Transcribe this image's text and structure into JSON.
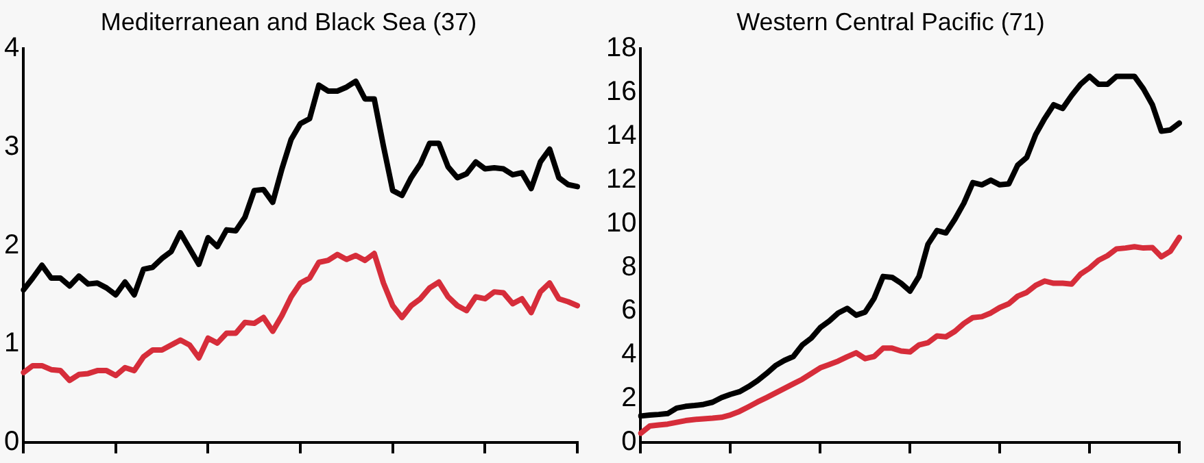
{
  "chart_data": [
    {
      "type": "line",
      "title": "Mediterranean and Black Sea (37)",
      "categories": [
        null,
        null,
        null,
        null,
        null,
        null,
        null,
        null,
        null,
        null,
        null,
        null,
        null,
        null,
        null,
        null,
        null,
        null,
        null,
        null,
        null,
        null,
        null,
        null,
        null,
        null,
        null,
        null,
        null,
        null,
        null,
        null,
        null,
        null,
        null,
        null,
        null,
        null,
        null,
        null,
        null,
        null,
        null,
        null,
        null,
        null,
        null,
        null,
        null,
        null,
        null,
        null,
        null,
        null,
        null,
        null,
        null,
        null,
        null,
        null,
        null
      ],
      "ylim": [
        0,
        4
      ],
      "yticks": [
        0,
        1,
        2,
        3,
        4
      ],
      "tick_labels": "y",
      "line_style": "solid",
      "series": [
        {
          "color": "#000000",
          "values": [
            1.55,
            1.67,
            1.8,
            1.67,
            1.67,
            1.59,
            1.69,
            1.61,
            1.62,
            1.57,
            1.5,
            1.63,
            1.5,
            1.76,
            1.78,
            1.87,
            1.94,
            2.13,
            1.97,
            1.81,
            2.08,
            1.99,
            2.16,
            2.15,
            2.29,
            2.56,
            2.57,
            2.44,
            2.78,
            3.08,
            3.24,
            3.29,
            3.63,
            3.57,
            3.57,
            3.61,
            3.67,
            3.49,
            3.49,
            3.01,
            2.56,
            2.51,
            2.69,
            2.83,
            3.04,
            3.04,
            2.8,
            2.69,
            2.73,
            2.85,
            2.78,
            2.79,
            2.78,
            2.72,
            2.74,
            2.58,
            2.85,
            2.98,
            2.69,
            2.62,
            2.6
          ]
        },
        {
          "color": "#d62d3a",
          "values": [
            0.71,
            0.78,
            0.78,
            0.74,
            0.73,
            0.63,
            0.69,
            0.7,
            0.73,
            0.73,
            0.68,
            0.76,
            0.73,
            0.87,
            0.94,
            0.94,
            0.99,
            1.04,
            0.99,
            0.86,
            1.06,
            1.01,
            1.11,
            1.11,
            1.22,
            1.21,
            1.27,
            1.13,
            1.29,
            1.48,
            1.62,
            1.67,
            1.83,
            1.85,
            1.91,
            1.86,
            1.9,
            1.85,
            1.92,
            1.62,
            1.39,
            1.27,
            1.39,
            1.46,
            1.57,
            1.63,
            1.48,
            1.39,
            1.34,
            1.48,
            1.46,
            1.53,
            1.52,
            1.41,
            1.46,
            1.32,
            1.53,
            1.62,
            1.46,
            1.43,
            1.39
          ]
        }
      ]
    },
    {
      "type": "line",
      "title": "Western Central Pacific (71)",
      "categories": [
        null,
        null,
        null,
        null,
        null,
        null,
        null,
        null,
        null,
        null,
        null,
        null,
        null,
        null,
        null,
        null,
        null,
        null,
        null,
        null,
        null,
        null,
        null,
        null,
        null,
        null,
        null,
        null,
        null,
        null,
        null,
        null,
        null,
        null,
        null,
        null,
        null,
        null,
        null,
        null,
        null,
        null,
        null,
        null,
        null,
        null,
        null,
        null,
        null,
        null,
        null,
        null,
        null,
        null,
        null,
        null,
        null,
        null,
        null,
        null,
        null
      ],
      "ylim": [
        0,
        18
      ],
      "yticks": [
        0,
        2,
        4,
        6,
        8,
        10,
        12,
        14,
        16,
        18
      ],
      "tick_labels": "y",
      "line_style": "solid",
      "series": [
        {
          "color": "#000000",
          "values": [
            1.21,
            1.25,
            1.28,
            1.32,
            1.57,
            1.65,
            1.69,
            1.74,
            1.84,
            2.05,
            2.2,
            2.32,
            2.55,
            2.82,
            3.15,
            3.51,
            3.75,
            3.93,
            4.46,
            4.77,
            5.25,
            5.55,
            5.92,
            6.13,
            5.82,
            5.96,
            6.59,
            7.59,
            7.55,
            7.28,
            6.92,
            7.59,
            9.06,
            9.69,
            9.58,
            10.21,
            10.94,
            11.88,
            11.78,
            11.99,
            11.78,
            11.82,
            12.68,
            13.03,
            14.08,
            14.81,
            15.44,
            15.27,
            15.86,
            16.38,
            16.74,
            16.38,
            16.38,
            16.74,
            16.74,
            16.74,
            16.17,
            15.44,
            14.23,
            14.29,
            14.6
          ]
        },
        {
          "color": "#d62d3a",
          "values": [
            0.42,
            0.75,
            0.8,
            0.84,
            0.92,
            1.0,
            1.05,
            1.08,
            1.11,
            1.15,
            1.26,
            1.42,
            1.63,
            1.85,
            2.05,
            2.26,
            2.47,
            2.68,
            2.89,
            3.15,
            3.41,
            3.56,
            3.72,
            3.92,
            4.1,
            3.83,
            3.93,
            4.31,
            4.31,
            4.18,
            4.14,
            4.46,
            4.56,
            4.87,
            4.83,
            5.08,
            5.44,
            5.71,
            5.75,
            5.92,
            6.17,
            6.34,
            6.69,
            6.86,
            7.18,
            7.38,
            7.28,
            7.28,
            7.24,
            7.7,
            7.97,
            8.33,
            8.54,
            8.85,
            8.89,
            8.95,
            8.89,
            8.91,
            8.49,
            8.74,
            9.37
          ]
        }
      ]
    }
  ]
}
